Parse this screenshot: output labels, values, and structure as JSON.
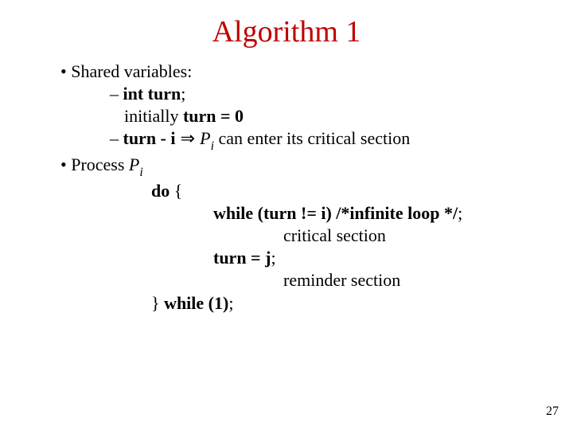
{
  "title": {
    "text": "Algorithm 1",
    "color": "#c00000",
    "fontsize": 38
  },
  "body": {
    "color": "#000000",
    "fontsize": 22,
    "b1": "Shared variables:",
    "b1a_int": "int turn",
    "b1a_semi": ";",
    "b1b": "initially ",
    "b1b_bold": "turn = 0",
    "b1c_turn": "turn - i",
    "b1c_arrow": " ⇒ ",
    "b1c_P": "P",
    "b1c_i": "i",
    "b1c_rest": " can enter its critical section",
    "b2a": "Process ",
    "b2a_P": "P",
    "b2a_i": "i",
    "b2b": "do",
    "b2b_brace": " {",
    "b2c": "while (turn != i) /*infinite loop */",
    "b2c_semi": ";",
    "b2d": "critical section",
    "b2e": "turn = j",
    "b2e_semi": ";",
    "b2f": "reminder section",
    "b2g_brace": "} ",
    "b2g": "while (1)",
    "b2g_semi": ";"
  },
  "page_number": "27",
  "background_color": "#ffffff"
}
